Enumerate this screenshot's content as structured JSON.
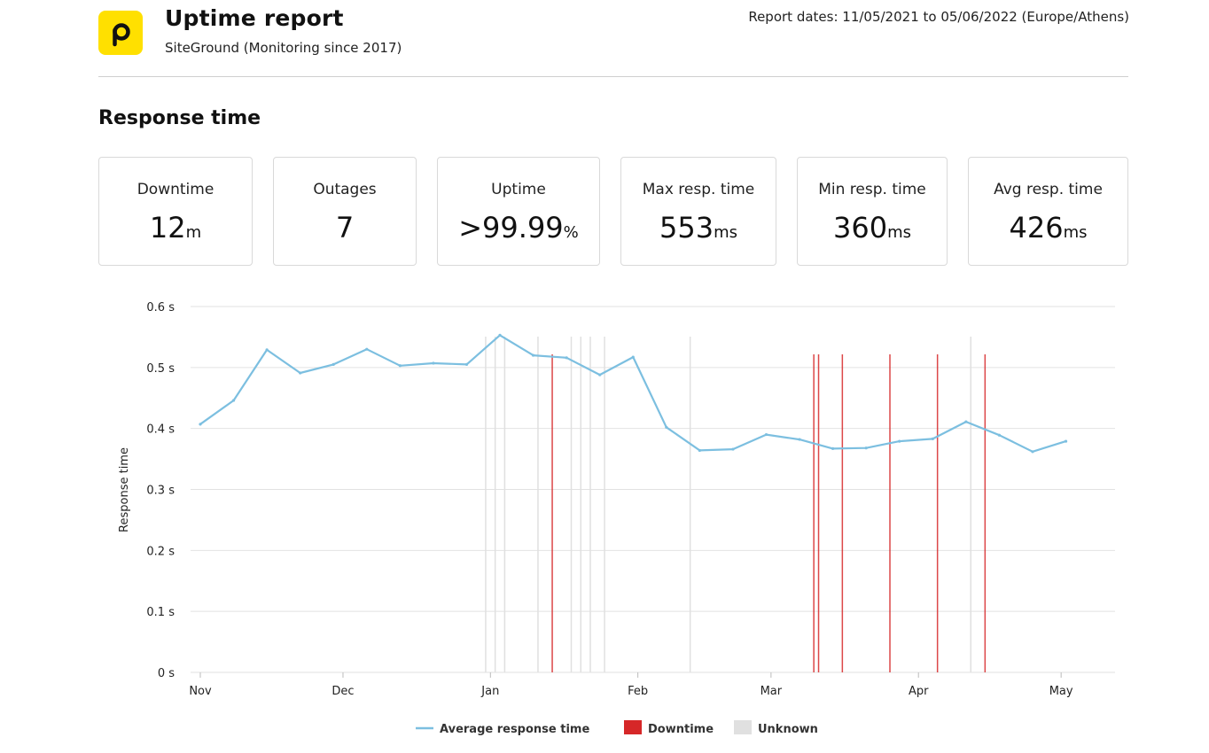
{
  "header": {
    "logo_letter": "p",
    "title": "Uptime report",
    "subtitle": "SiteGround (Monitoring since 2017)",
    "dates": "Report dates: 11/05/2021 to 05/06/2022 (Europe/Athens)"
  },
  "section_title": "Response time",
  "stats": [
    {
      "label": "Downtime",
      "value": "12",
      "unit": "m"
    },
    {
      "label": "Outages",
      "value": "7",
      "unit": ""
    },
    {
      "label": "Uptime",
      "value": ">99.99",
      "unit": "%"
    },
    {
      "label": "Max resp. time",
      "value": "553",
      "unit": "ms"
    },
    {
      "label": "Min resp. time",
      "value": "360",
      "unit": "ms"
    },
    {
      "label": "Avg resp. time",
      "value": "426",
      "unit": "ms"
    }
  ],
  "colors": {
    "accent_yellow": "#ffe000",
    "line": "#7cbfe0",
    "downtime": "#d62728",
    "unknown": "#e0e0e0",
    "grid": "#e2e2e2"
  },
  "chart_data": {
    "type": "line",
    "ylabel": "Response time",
    "ylim": [
      0,
      0.6
    ],
    "yticks": [
      "0 s",
      "0.1 s",
      "0.2 s",
      "0.3 s",
      "0.4 s",
      "0.5 s",
      "0.6 s"
    ],
    "xlim": [
      "2021-11-01",
      "2022-05-06"
    ],
    "xticks": [
      {
        "label": "Nov",
        "date": "2021-11-01"
      },
      {
        "label": "Dec",
        "date": "2021-12-01"
      },
      {
        "label": "Jan",
        "date": "2022-01-01"
      },
      {
        "label": "Feb",
        "date": "2022-02-01"
      },
      {
        "label": "Mar",
        "date": "2022-03-01"
      },
      {
        "label": "Apr",
        "date": "2022-04-01"
      },
      {
        "label": "May",
        "date": "2022-05-01"
      }
    ],
    "grid": true,
    "legend_position": "bottom",
    "series": [
      {
        "name": "Average response time",
        "points": [
          [
            "2021-11-01",
            0.407
          ],
          [
            "2021-11-08",
            0.446
          ],
          [
            "2021-11-15",
            0.529
          ],
          [
            "2021-11-22",
            0.491
          ],
          [
            "2021-11-29",
            0.505
          ],
          [
            "2021-12-06",
            0.53
          ],
          [
            "2021-12-13",
            0.503
          ],
          [
            "2021-12-20",
            0.507
          ],
          [
            "2021-12-27",
            0.505
          ],
          [
            "2022-01-03",
            0.553
          ],
          [
            "2022-01-10",
            0.52
          ],
          [
            "2022-01-17",
            0.516
          ],
          [
            "2022-01-24",
            0.488
          ],
          [
            "2022-01-31",
            0.517
          ],
          [
            "2022-02-07",
            0.402
          ],
          [
            "2022-02-14",
            0.364
          ],
          [
            "2022-02-21",
            0.366
          ],
          [
            "2022-02-28",
            0.39
          ],
          [
            "2022-03-07",
            0.382
          ],
          [
            "2022-03-14",
            0.367
          ],
          [
            "2022-03-21",
            0.368
          ],
          [
            "2022-03-28",
            0.379
          ],
          [
            "2022-04-04",
            0.383
          ],
          [
            "2022-04-11",
            0.411
          ],
          [
            "2022-04-18",
            0.389
          ],
          [
            "2022-04-25",
            0.362
          ],
          [
            "2022-05-02",
            0.379
          ]
        ]
      }
    ],
    "downtime_events": [
      "2022-01-14",
      "2022-03-10",
      "2022-03-11",
      "2022-03-16",
      "2022-03-26",
      "2022-04-05",
      "2022-04-15"
    ],
    "unknown_events": [
      "2021-12-31",
      "2022-01-02",
      "2022-01-04",
      "2022-01-11",
      "2022-01-18",
      "2022-01-20",
      "2022-01-22",
      "2022-01-25",
      "2022-02-12",
      "2022-04-12"
    ],
    "legend": [
      {
        "label": "Average response time",
        "kind": "line"
      },
      {
        "label": "Downtime",
        "kind": "downtime"
      },
      {
        "label": "Unknown",
        "kind": "unknown"
      }
    ]
  }
}
